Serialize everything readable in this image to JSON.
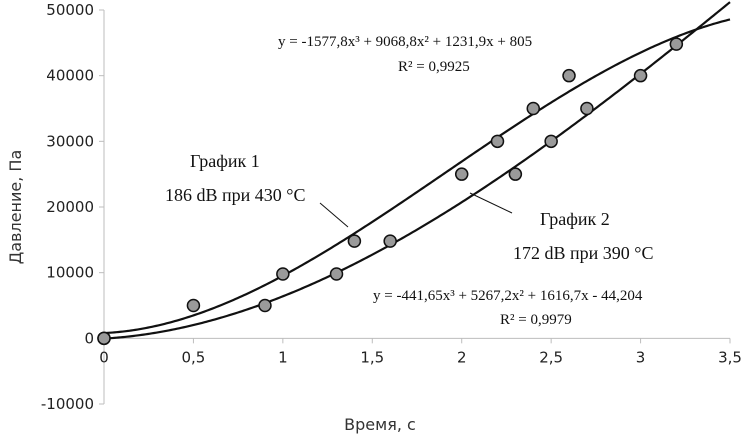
{
  "chart_data": {
    "type": "scatter",
    "xlabel": "Время, с",
    "ylabel": "Давление, Па",
    "xlim": [
      0,
      3.5
    ],
    "ylim": [
      -10000,
      50000
    ],
    "x_ticks": [
      0,
      0.5,
      1,
      1.5,
      2,
      2.5,
      3,
      3.5
    ],
    "x_tick_labels": [
      "0",
      "0,5",
      "1",
      "1,5",
      "2",
      "2,5",
      "3",
      "3,5"
    ],
    "y_ticks": [
      -10000,
      0,
      10000,
      20000,
      30000,
      40000,
      50000
    ],
    "y_tick_labels": [
      "-10000",
      "0",
      "10000",
      "20000",
      "30000",
      "40000",
      "50000"
    ],
    "grid": false,
    "marker_color": "#9a9a9a",
    "line_color": "#111111",
    "series": [
      {
        "name": "График 1",
        "points": [
          [
            0,
            0
          ],
          [
            0.5,
            5000
          ],
          [
            1,
            9800
          ],
          [
            1.4,
            14800
          ],
          [
            2.2,
            30000
          ],
          [
            2.4,
            35000
          ],
          [
            2.6,
            40000
          ],
          [
            3.2,
            44800
          ]
        ],
        "trendline": {
          "coefficients": [
            -1577.8,
            9068.8,
            1231.9,
            805
          ],
          "x_range": [
            0,
            3.5
          ],
          "equation": "y = -1577,8x³ + 9068,8x² + 1231,9x + 805",
          "r2": "R² = 0,9925"
        }
      },
      {
        "name": "График 2",
        "points": [
          [
            0,
            0
          ],
          [
            0.9,
            5000
          ],
          [
            1.3,
            9800
          ],
          [
            1.6,
            14800
          ],
          [
            2,
            25000
          ],
          [
            2.3,
            25000
          ],
          [
            2.5,
            30000
          ],
          [
            2.7,
            35000
          ],
          [
            3,
            40000
          ]
        ],
        "trendline": {
          "coefficients": [
            -441.65,
            5267.2,
            1616.7,
            -44.204
          ],
          "x_range": [
            0,
            3.5
          ],
          "equation": "y = -441,65x³ + 5267,2x² + 1616,7x - 44,204",
          "r2": "R² = 0,9979"
        }
      }
    ],
    "annotations": [
      {
        "series": 0,
        "line1": "График 1",
        "line2": "186 dB при 430 °C"
      },
      {
        "series": 1,
        "line1": "График 2",
        "line2": "172 dB при 390 °C"
      }
    ]
  }
}
